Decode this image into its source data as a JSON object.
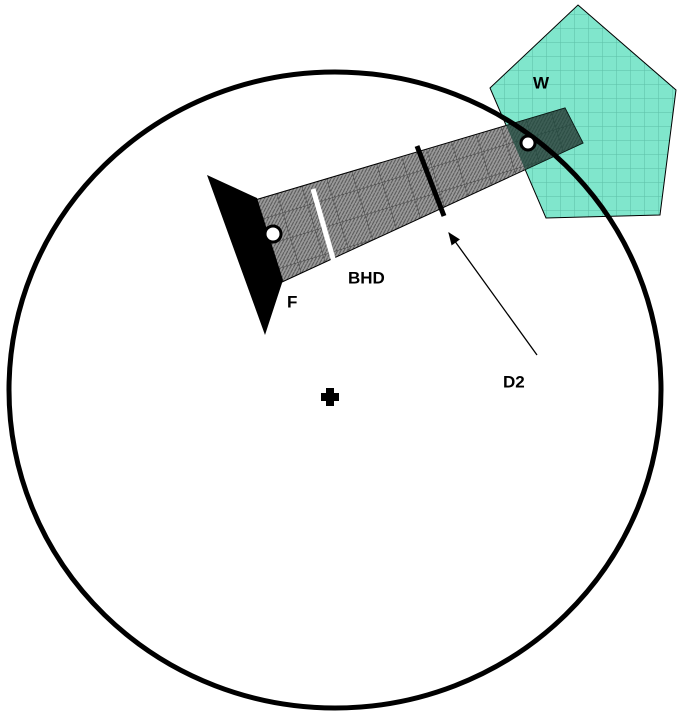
{
  "labels": {
    "w": "W",
    "bhd": "BHD",
    "f": "F",
    "d2": "D2"
  }
}
